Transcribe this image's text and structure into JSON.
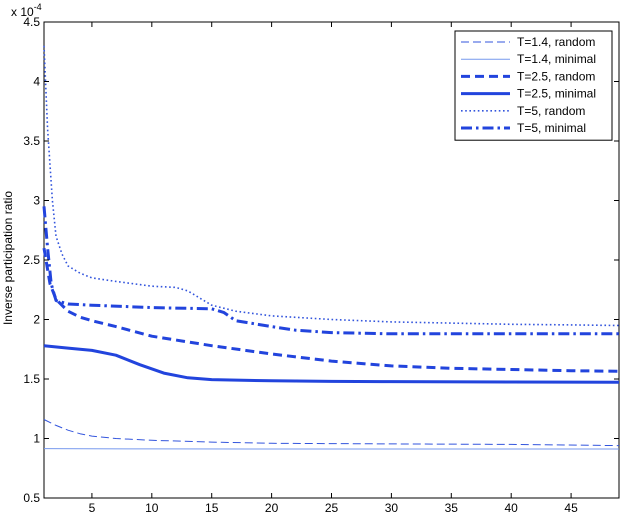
{
  "chart_data": {
    "type": "line",
    "title": "",
    "xlabel": "",
    "ylabel": "Inverse participation ratio",
    "y_multiplier_label": "x 10",
    "y_multiplier_exponent": "-4",
    "xlim": [
      1,
      49
    ],
    "ylim": [
      0.5,
      4.5
    ],
    "xticks": [
      5,
      10,
      15,
      20,
      25,
      30,
      35,
      40,
      45
    ],
    "yticks": [
      0.5,
      1,
      1.5,
      2,
      2.5,
      3,
      3.5,
      4,
      4.5
    ],
    "grid": false,
    "legend_position": "top-right",
    "series": [
      {
        "name": "T=1.4, random",
        "color": "#3355dd",
        "style": "dashed",
        "width": "thin",
        "points": [
          [
            1,
            1.16
          ],
          [
            2,
            1.11
          ],
          [
            3,
            1.07
          ],
          [
            4,
            1.04
          ],
          [
            5,
            1.02
          ],
          [
            7,
            1.0
          ],
          [
            10,
            0.985
          ],
          [
            15,
            0.97
          ],
          [
            20,
            0.96
          ],
          [
            30,
            0.955
          ],
          [
            40,
            0.95
          ],
          [
            49,
            0.94
          ]
        ]
      },
      {
        "name": "T=1.4, minimal",
        "color": "#7799ee",
        "style": "solid",
        "width": "thin",
        "points": [
          [
            1,
            0.915
          ],
          [
            10,
            0.913
          ],
          [
            20,
            0.912
          ],
          [
            30,
            0.912
          ],
          [
            49,
            0.912
          ]
        ]
      },
      {
        "name": "T=2.5, random",
        "color": "#2244dd",
        "style": "dashed",
        "width": "thick",
        "points": [
          [
            1,
            2.6
          ],
          [
            1.5,
            2.3
          ],
          [
            2,
            2.17
          ],
          [
            3,
            2.07
          ],
          [
            4,
            2.02
          ],
          [
            5,
            1.99
          ],
          [
            7,
            1.94
          ],
          [
            10,
            1.86
          ],
          [
            15,
            1.78
          ],
          [
            20,
            1.71
          ],
          [
            25,
            1.65
          ],
          [
            30,
            1.61
          ],
          [
            35,
            1.59
          ],
          [
            40,
            1.58
          ],
          [
            45,
            1.57
          ],
          [
            49,
            1.565
          ]
        ]
      },
      {
        "name": "T=2.5, minimal",
        "color": "#2244dd",
        "style": "solid",
        "width": "thick",
        "points": [
          [
            1,
            1.78
          ],
          [
            3,
            1.76
          ],
          [
            5,
            1.74
          ],
          [
            7,
            1.7
          ],
          [
            9,
            1.62
          ],
          [
            11,
            1.55
          ],
          [
            13,
            1.51
          ],
          [
            15,
            1.495
          ],
          [
            20,
            1.485
          ],
          [
            25,
            1.48
          ],
          [
            30,
            1.478
          ],
          [
            40,
            1.475
          ],
          [
            49,
            1.473
          ]
        ]
      },
      {
        "name": "T=5, random",
        "color": "#3355dd",
        "style": "dotted",
        "width": "normal",
        "points": [
          [
            1,
            4.3
          ],
          [
            1.3,
            3.6
          ],
          [
            1.7,
            3.0
          ],
          [
            2,
            2.7
          ],
          [
            2.5,
            2.55
          ],
          [
            3,
            2.45
          ],
          [
            4,
            2.39
          ],
          [
            5,
            2.35
          ],
          [
            7,
            2.32
          ],
          [
            10,
            2.28
          ],
          [
            12,
            2.27
          ],
          [
            13,
            2.24
          ],
          [
            15,
            2.12
          ],
          [
            17,
            2.07
          ],
          [
            20,
            2.03
          ],
          [
            25,
            2.0
          ],
          [
            30,
            1.98
          ],
          [
            35,
            1.97
          ],
          [
            40,
            1.96
          ],
          [
            45,
            1.955
          ],
          [
            49,
            1.95
          ]
        ]
      },
      {
        "name": "T=5, minimal",
        "color": "#2244dd",
        "style": "dashdot",
        "width": "thick",
        "points": [
          [
            1,
            2.95
          ],
          [
            1.3,
            2.6
          ],
          [
            1.6,
            2.3
          ],
          [
            2,
            2.16
          ],
          [
            3,
            2.13
          ],
          [
            5,
            2.12
          ],
          [
            10,
            2.1
          ],
          [
            15,
            2.09
          ],
          [
            16,
            2.06
          ],
          [
            17,
            1.99
          ],
          [
            20,
            1.94
          ],
          [
            22,
            1.91
          ],
          [
            25,
            1.89
          ],
          [
            30,
            1.88
          ],
          [
            40,
            1.88
          ],
          [
            49,
            1.88
          ]
        ]
      }
    ]
  }
}
